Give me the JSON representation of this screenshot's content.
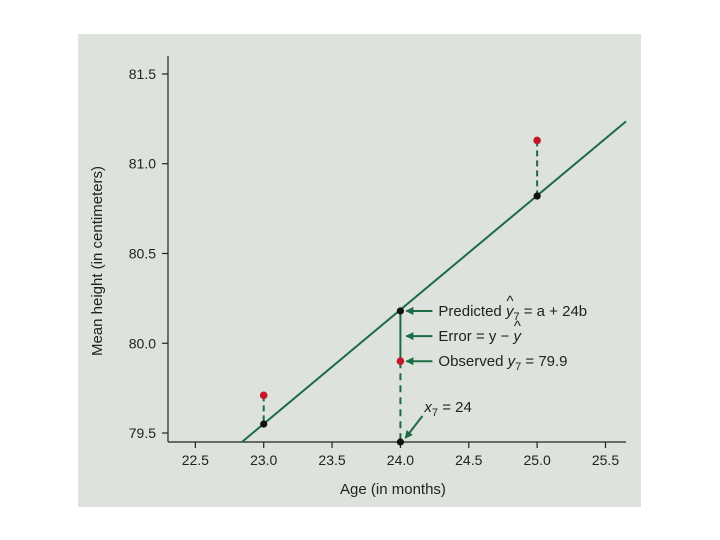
{
  "chart_data": {
    "type": "scatter",
    "xlabel": "Age (in months)",
    "ylabel": "Mean height (in centimeters)",
    "xlim": [
      22.3,
      25.65
    ],
    "ylim": [
      79.45,
      81.6
    ],
    "x_ticks": [
      "22.5",
      "23.0",
      "23.5",
      "24.0",
      "24.5",
      "25.0",
      "25.5"
    ],
    "y_ticks": [
      "79.5",
      "80.0",
      "80.5",
      "81.0",
      "81.5"
    ],
    "grid": false,
    "regression_line": {
      "intercept": 64.93,
      "slope": 0.6357
    },
    "observed_points": [
      {
        "x": 23,
        "y": 79.71
      },
      {
        "x": 24,
        "y": 79.9
      },
      {
        "x": 25,
        "y": 81.13
      }
    ],
    "predicted_points": [
      {
        "x": 23,
        "y": 79.55
      },
      {
        "x": 24,
        "y": 80.18
      },
      {
        "x": 25,
        "y": 80.82
      }
    ],
    "annotations": {
      "predicted": {
        "prefix": "Predicted ",
        "var": "y",
        "hat": "^",
        "sub": "7",
        "suffix": " = a + 24b"
      },
      "error": {
        "prefix": "Error = y − ",
        "var": "y",
        "hat": "^"
      },
      "observed": {
        "prefix": "Observed ",
        "var": "y",
        "sub": "7",
        "suffix": " = 79.9"
      },
      "x7": {
        "var": "x",
        "sub": "7",
        "suffix": " = 24"
      }
    },
    "colors": {
      "background": "#dde2dc",
      "line": "#1d6b45",
      "observed": "#c4182a",
      "predicted": "#111111"
    }
  }
}
